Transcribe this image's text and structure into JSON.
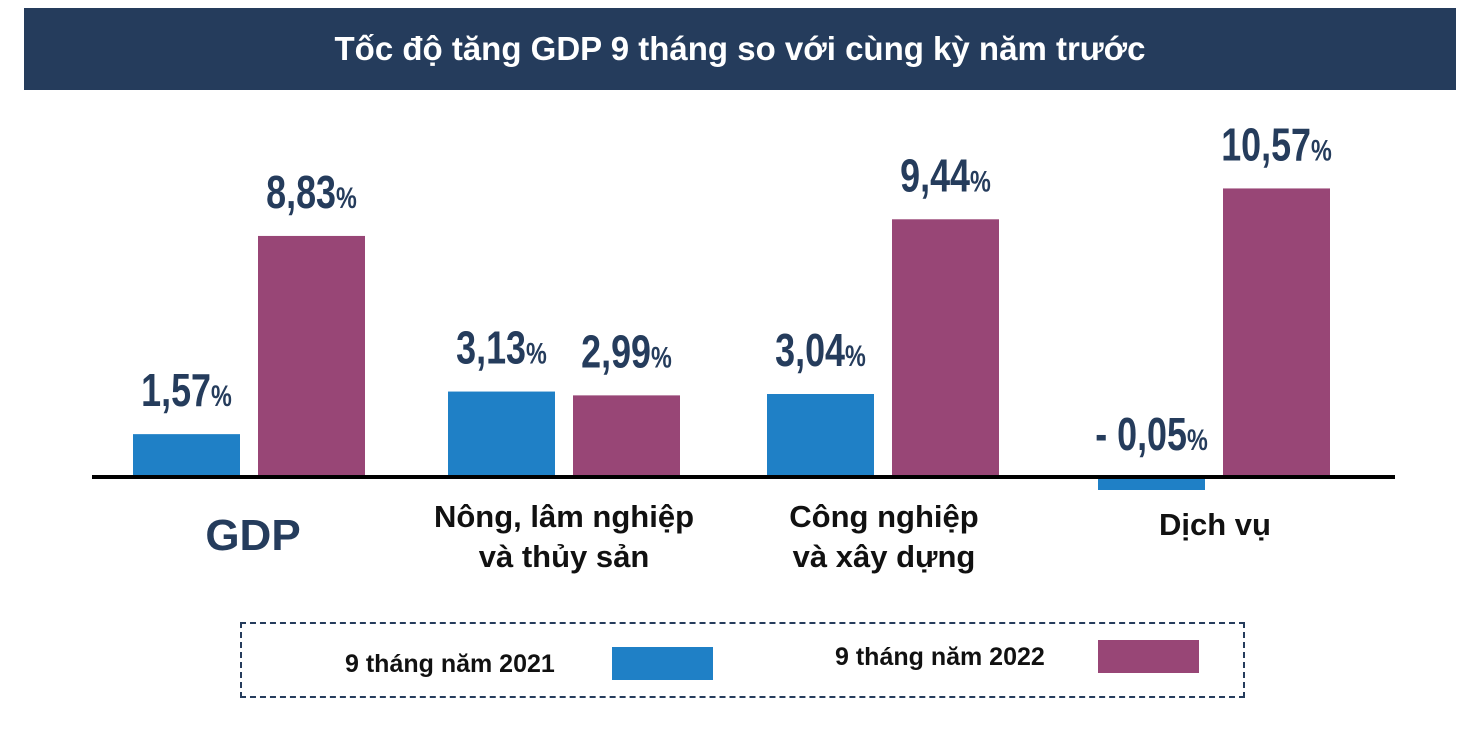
{
  "chart_data": {
    "type": "bar",
    "title": "Tốc độ tăng GDP 9 tháng so với cùng kỳ năm trước",
    "categories": [
      [
        "GDP"
      ],
      [
        "Nông, lâm nghiệp",
        "và thủy sản"
      ],
      [
        "Công nghiệp",
        "và xây dựng"
      ],
      [
        "Dịch vụ"
      ]
    ],
    "series": [
      {
        "name": "9 tháng năm 2021",
        "color": "#1f80c6",
        "values": [
          1.57,
          3.13,
          3.04,
          -0.05
        ],
        "labels": [
          "1,57",
          "3,13",
          "3,04",
          "- 0,05"
        ]
      },
      {
        "name": "9 tháng năm 2022",
        "color": "#984676",
        "values": [
          8.83,
          2.99,
          9.44,
          10.57
        ],
        "labels": [
          "8,83",
          "2,99",
          "9,44",
          "10,57"
        ]
      }
    ],
    "unit_suffix": "%",
    "xlabel": "",
    "ylabel": "",
    "ylim": [
      -0.5,
      11.5
    ],
    "grid": false,
    "legend_placement": "bottom"
  },
  "colors": {
    "title_bg": "#253c5c",
    "text": "#253c5c"
  }
}
